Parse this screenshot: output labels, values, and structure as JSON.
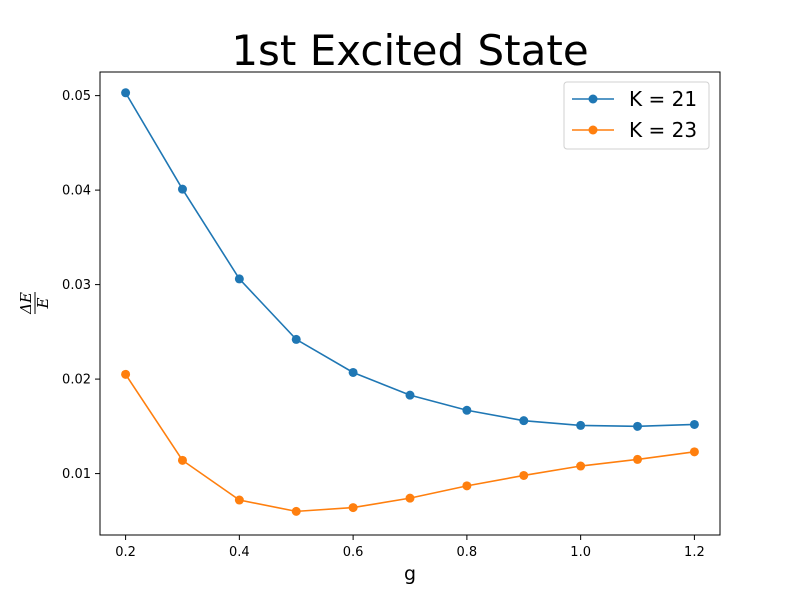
{
  "chart_data": {
    "type": "line",
    "title": "1st Excited State",
    "xlabel": "g",
    "ylabel": {
      "numerator": "ΔE",
      "denominator": "E"
    },
    "xlim": [
      0.155,
      1.245
    ],
    "ylim": [
      0.0035,
      0.0525
    ],
    "xticks": [
      "0.2",
      "0.4",
      "0.6",
      "0.8",
      "1.0",
      "1.2"
    ],
    "yticks": [
      "0.01",
      "0.02",
      "0.03",
      "0.04",
      "0.05"
    ],
    "legend_position": "top-right",
    "x": [
      0.2,
      0.3,
      0.4,
      0.5,
      0.6,
      0.7,
      0.8,
      0.9,
      1.0,
      1.1,
      1.2
    ],
    "series": [
      {
        "name": "K = 21",
        "color": "#1f77b4",
        "values": [
          0.0503,
          0.0401,
          0.0306,
          0.0242,
          0.0207,
          0.0183,
          0.0167,
          0.0156,
          0.0151,
          0.015,
          0.0152
        ]
      },
      {
        "name": "K = 23",
        "color": "#ff7f0e",
        "values": [
          0.0205,
          0.0114,
          0.0072,
          0.006,
          0.0064,
          0.0074,
          0.0087,
          0.0098,
          0.0108,
          0.0115,
          0.0123
        ]
      }
    ]
  }
}
